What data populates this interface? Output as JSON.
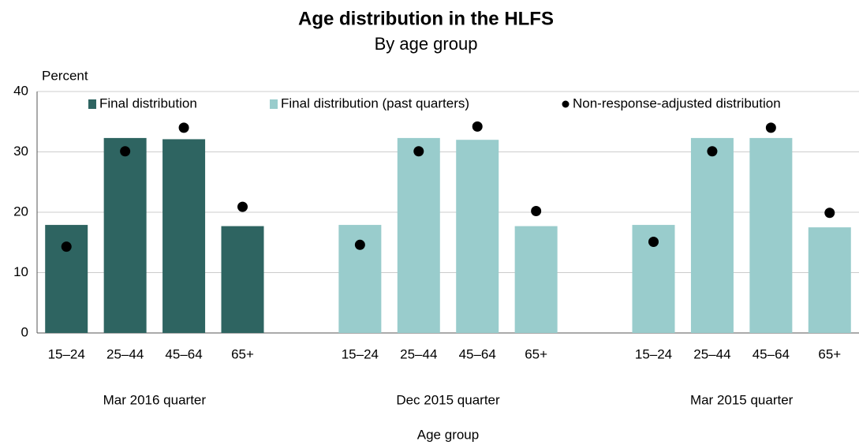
{
  "chart_data": {
    "type": "bar",
    "title": "Age distribution in the HLFS",
    "subtitle": "By age group",
    "y_axis_label": "Percent",
    "x_axis_label": "Age group",
    "categories": [
      "15–24",
      "25–44",
      "45–64",
      "65+",
      "15–24",
      "25–44",
      "45–64",
      "65+",
      "15–24",
      "25–44",
      "45–64",
      "65+"
    ],
    "group_labels": [
      "Mar 2016 quarter",
      "Dec 2015 quarter",
      "Mar 2015 quarter"
    ],
    "series": [
      {
        "name": "Final distribution",
        "type": "bar",
        "color": "#2e6461",
        "values": [
          17.9,
          32.3,
          32.1,
          17.7,
          null,
          null,
          null,
          null,
          null,
          null,
          null,
          null
        ]
      },
      {
        "name": "Final distribution (past quarters)",
        "type": "bar",
        "color": "#99cccc",
        "values": [
          null,
          null,
          null,
          null,
          17.9,
          32.3,
          32.0,
          17.7,
          17.9,
          32.3,
          32.3,
          17.5
        ]
      },
      {
        "name": "Non-response-adjusted distribution",
        "type": "scatter",
        "color": "#000000",
        "values": [
          14.3,
          30.1,
          34.0,
          20.9,
          14.6,
          30.1,
          34.2,
          20.2,
          15.1,
          30.1,
          34.0,
          19.9
        ]
      }
    ],
    "ylim": [
      0,
      40
    ],
    "yticks": [
      0,
      10,
      20,
      30,
      40
    ],
    "grid": true,
    "legend": "top"
  }
}
